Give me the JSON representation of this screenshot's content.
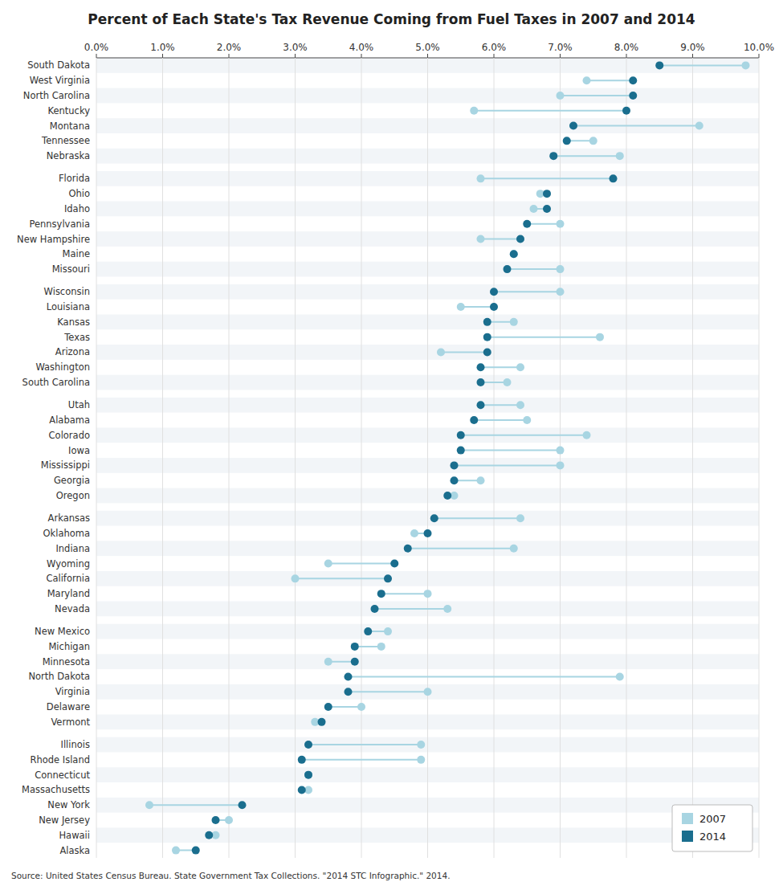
{
  "chart_data": {
    "type": "dumbbell",
    "title": "Percent of Each State's Tax Revenue Coming from Fuel Taxes in 2007 and 2014",
    "annotations": [
      "Source: United States Census Bureau. State Government Tax Collections. \"2014 STC Infographic.\" 2014."
    ],
    "orientation": "horizontal",
    "legend": "lower right",
    "categories": [
      "South Dakota",
      "West Virginia",
      "North Carolina",
      "Kentucky",
      "Montana",
      "Tennessee",
      "Nebraska",
      null,
      "Florida",
      "Ohio",
      "Idaho",
      "Pennsylvania",
      "New Hampshire",
      "Maine",
      "Missouri",
      null,
      "Wisconsin",
      "Louisiana",
      "Kansas",
      "Texas",
      "Arizona",
      "Washington",
      "South Carolina",
      null,
      "Utah",
      "Alabama",
      "Colorado",
      "Iowa",
      "Mississippi",
      "Georgia",
      "Oregon",
      null,
      "Arkansas",
      "Oklahoma",
      "Indiana",
      "Wyoming",
      "California",
      "Maryland",
      "Nevada",
      null,
      "New Mexico",
      "Michigan",
      "Minnesota",
      "North Dakota",
      "Virginia",
      "Delaware",
      "Vermont",
      null,
      "Illinois",
      "Rhode Island",
      "Connecticut",
      "Massachusetts",
      "New York",
      "New Jersey",
      "Hawaii",
      "Alaska"
    ],
    "series": [
      {
        "name": "2007",
        "color": "#a8d5e2",
        "values": [
          9.8,
          7.4,
          7.0,
          5.7,
          9.1,
          7.5,
          7.9,
          null,
          5.8,
          6.7,
          6.6,
          7.0,
          5.8,
          6.3,
          7.0,
          null,
          7.0,
          5.5,
          6.3,
          7.6,
          5.2,
          6.4,
          6.2,
          null,
          6.4,
          6.5,
          7.4,
          7.0,
          7.0,
          5.8,
          5.4,
          null,
          6.4,
          4.8,
          6.3,
          3.5,
          3.0,
          5.0,
          5.3,
          null,
          4.4,
          4.3,
          3.5,
          7.9,
          5.0,
          4.0,
          3.3,
          null,
          4.9,
          4.9,
          3.2,
          3.2,
          0.8,
          2.0,
          1.8,
          1.2
        ]
      },
      {
        "name": "2014",
        "color": "#1a6e8e",
        "values": [
          8.5,
          8.1,
          8.1,
          8.0,
          7.2,
          7.1,
          6.9,
          null,
          7.8,
          6.8,
          6.8,
          6.5,
          6.4,
          6.3,
          6.2,
          null,
          6.0,
          6.0,
          5.9,
          5.9,
          5.9,
          5.8,
          5.8,
          null,
          5.8,
          5.7,
          5.5,
          5.5,
          5.4,
          5.4,
          5.3,
          null,
          5.1,
          5.0,
          4.7,
          4.5,
          4.4,
          4.3,
          4.2,
          null,
          4.1,
          3.9,
          3.9,
          3.8,
          3.8,
          3.5,
          3.4,
          null,
          3.2,
          3.1,
          3.2,
          3.1,
          2.2,
          1.8,
          1.7,
          1.5
        ]
      }
    ],
    "xlim": [
      0.0,
      10.0
    ],
    "xticks": [
      {
        "value": 0.0,
        "label": "0.0%"
      },
      {
        "value": 1.0,
        "label": "1.0%"
      },
      {
        "value": 2.0,
        "label": "2.0%"
      },
      {
        "value": 3.0,
        "label": "3.0%"
      },
      {
        "value": 4.0,
        "label": "4.0%"
      },
      {
        "value": 5.0,
        "label": "5.0%"
      },
      {
        "value": 6.0,
        "label": "6.0%"
      },
      {
        "value": 7.0,
        "label": "7.0%"
      },
      {
        "value": 8.0,
        "label": "8.0%"
      },
      {
        "value": 9.0,
        "label": "9.0%"
      },
      {
        "value": 10.0,
        "label": "10.0%"
      }
    ]
  }
}
